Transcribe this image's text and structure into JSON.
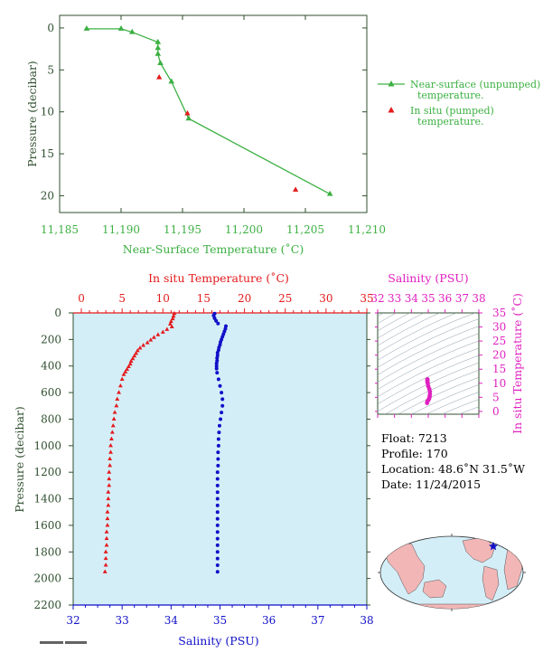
{
  "colors": {
    "green": "#3cb043",
    "red": "#e41a1c",
    "blue": "#1010c8",
    "magenta": "#e020c0",
    "axis_dark": "#2f4f2f",
    "plot_bg": "#d4eef8"
  },
  "chart_data": [
    {
      "id": "near-surface",
      "type": "scatter",
      "xlabel": "Near-Surface Temperature (˚C)",
      "ylabel": "Pressure (decibar)",
      "xlim": [
        11.185,
        11.21
      ],
      "ylim": [
        22,
        -1.5
      ],
      "xticks": [
        "11,185",
        "11,190",
        "11,195",
        "11,200",
        "11,205",
        "11,210"
      ],
      "yticks": [
        "0",
        "5",
        "10",
        "15",
        "20"
      ],
      "series": [
        {
          "name": "Near-surface (unpumped) temperature.",
          "marker": "triangle",
          "line": true,
          "x": [
            11.1872,
            11.19,
            11.1909,
            11.193,
            11.193,
            11.193,
            11.1932,
            11.1941,
            11.1955,
            11.207
          ],
          "y": [
            0.1,
            0.1,
            0.5,
            1.7,
            2.4,
            3.1,
            4.2,
            6.4,
            10.8,
            19.8
          ]
        },
        {
          "name": "In situ (pumped) temperature.",
          "marker": "triangle",
          "line": false,
          "x": [
            11.1931,
            11.1954,
            11.2042
          ],
          "y": [
            5.9,
            10.2,
            19.3
          ]
        }
      ]
    },
    {
      "id": "profile",
      "type": "scatter",
      "ylabel": "Pressure (decibar)",
      "ylim": [
        2200,
        0
      ],
      "yticks": [
        "0",
        "200",
        "400",
        "600",
        "800",
        "1000",
        "1200",
        "1400",
        "1600",
        "1800",
        "2000",
        "2200"
      ],
      "temp_axis": {
        "label": "In situ Temperature (˚C)",
        "lim": [
          -1,
          35
        ],
        "ticks": [
          "0",
          "5",
          "10",
          "15",
          "20",
          "25",
          "30",
          "35"
        ]
      },
      "sal_axis": {
        "label": "Salinity (PSU)",
        "lim": [
          32,
          38
        ],
        "ticks": [
          "32",
          "33",
          "34",
          "35",
          "36",
          "37",
          "38"
        ]
      },
      "series": [
        {
          "variable": "temperature",
          "pressure": [
            5,
            25,
            45,
            65,
            85,
            105,
            125,
            145,
            165,
            185,
            205,
            225,
            245,
            265,
            285,
            305,
            325,
            345,
            365,
            385,
            405,
            425,
            445,
            465,
            500,
            550,
            600,
            650,
            700,
            750,
            800,
            850,
            900,
            950,
            1000,
            1050,
            1100,
            1150,
            1200,
            1250,
            1300,
            1350,
            1400,
            1450,
            1500,
            1550,
            1600,
            1650,
            1700,
            1750,
            1800,
            1850,
            1900,
            1950
          ],
          "temperature": [
            11.4,
            11.3,
            11.2,
            11.0,
            10.9,
            11.1,
            10.5,
            10.0,
            9.4,
            8.9,
            8.5,
            8.1,
            7.6,
            7.2,
            6.9,
            6.7,
            6.5,
            6.3,
            6.1,
            6.0,
            5.8,
            5.6,
            5.4,
            5.2,
            5.0,
            4.8,
            4.6,
            4.4,
            4.3,
            4.1,
            4.0,
            3.9,
            3.8,
            3.7,
            3.6,
            3.6,
            3.5,
            3.5,
            3.4,
            3.4,
            3.4,
            3.3,
            3.3,
            3.3,
            3.2,
            3.2,
            3.2,
            3.1,
            3.1,
            3.1,
            3.0,
            3.0,
            3.0,
            2.9
          ]
        },
        {
          "variable": "salinity",
          "pressure": [
            5,
            20,
            40,
            60,
            80,
            100,
            120,
            140,
            160,
            180,
            200,
            220,
            240,
            260,
            280,
            300,
            320,
            340,
            360,
            380,
            400,
            420,
            450,
            500,
            550,
            600,
            650,
            700,
            750,
            800,
            850,
            900,
            950,
            1000,
            1050,
            1100,
            1150,
            1200,
            1250,
            1300,
            1350,
            1400,
            1450,
            1500,
            1550,
            1600,
            1650,
            1700,
            1750,
            1800,
            1850,
            1900,
            1950
          ],
          "salinity": [
            34.89,
            34.87,
            34.89,
            34.92,
            34.96,
            35.12,
            35.11,
            35.09,
            35.07,
            35.05,
            35.03,
            35.01,
            35.0,
            34.98,
            34.97,
            34.95,
            34.95,
            34.94,
            34.94,
            34.93,
            34.93,
            34.93,
            34.94,
            34.97,
            35.0,
            35.03,
            35.05,
            35.05,
            35.03,
            35.01,
            34.99,
            34.98,
            34.97,
            34.97,
            34.96,
            34.96,
            34.96,
            34.95,
            34.95,
            34.95,
            34.95,
            34.95,
            34.95,
            34.95,
            34.95,
            34.95,
            34.95,
            34.95,
            34.95,
            34.95,
            34.95,
            34.95,
            34.95
          ]
        }
      ]
    },
    {
      "id": "ts-diagram",
      "type": "scatter",
      "xlabel": "Salinity (PSU)",
      "ylabel": "In situ Temperature (˚C)",
      "xlim": [
        32,
        38
      ],
      "ylim": [
        -1,
        35
      ],
      "xticks": [
        "32",
        "33",
        "34",
        "35",
        "36",
        "37",
        "38"
      ],
      "yticks": [
        "0",
        "5",
        "10",
        "15",
        "20",
        "25",
        "30",
        "35"
      ],
      "series": [
        {
          "salinity": [
            34.93,
            34.95,
            35.0,
            35.05,
            35.08,
            35.1,
            35.1,
            35.06,
            35.0,
            34.97,
            34.95,
            34.95,
            34.95,
            34.95
          ],
          "temperature": [
            3.0,
            3.5,
            4.0,
            4.5,
            5.2,
            6.0,
            7.0,
            8.0,
            9.0,
            10.0,
            10.5,
            11.0,
            11.2,
            11.4
          ]
        }
      ]
    }
  ],
  "float_info": {
    "float": "Float:  7213",
    "profile": "Profile:  170",
    "location": "Location:  48.6˚N  31.5˚W",
    "date": "Date:  11/24/2015"
  },
  "map": {
    "float_marker_icon": "star-icon"
  }
}
